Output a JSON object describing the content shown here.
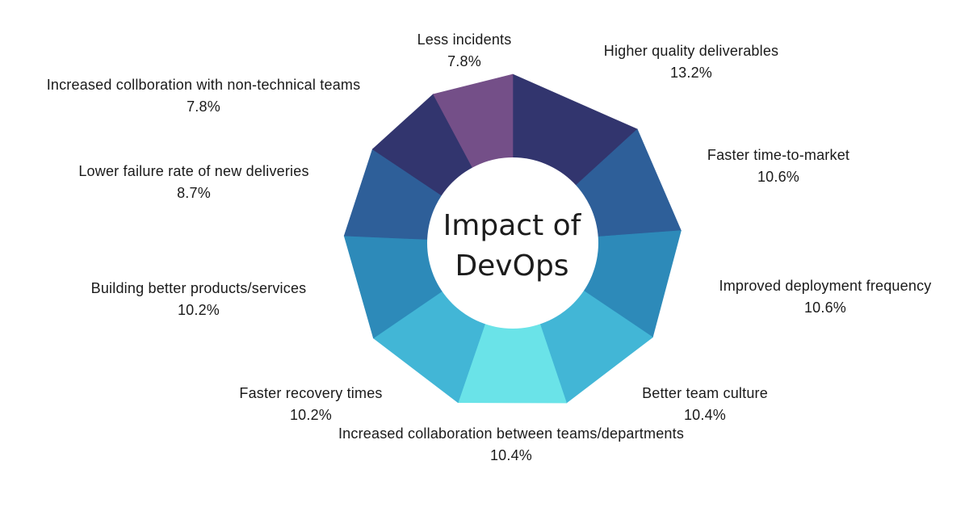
{
  "chart_data": {
    "type": "pie",
    "title_line1": "Impact of",
    "title_line2": "DevOps",
    "slices": [
      {
        "label": "Higher quality deliverables",
        "value": 13.2,
        "pct_text": "13.2%",
        "color": "#32356e"
      },
      {
        "label": "Faster time-to-market",
        "value": 10.6,
        "pct_text": "10.6%",
        "color": "#2e5f99"
      },
      {
        "label": "Improved deployment frequency",
        "value": 10.6,
        "pct_text": "10.6%",
        "color": "#2d8ab9"
      },
      {
        "label": "Better team culture",
        "value": 10.4,
        "pct_text": "10.4%",
        "color": "#42b6d6"
      },
      {
        "label": "Increased collaboration between teams/departments",
        "value": 10.4,
        "pct_text": "10.4%",
        "color": "#6ae3e8"
      },
      {
        "label": "Faster recovery times",
        "value": 10.2,
        "pct_text": "10.2%",
        "color": "#42b6d6"
      },
      {
        "label": "Building better products/services",
        "value": 10.2,
        "pct_text": "10.2%",
        "color": "#2d8ab9"
      },
      {
        "label": "Lower failure rate of new deliveries",
        "value": 8.7,
        "pct_text": "8.7%",
        "color": "#2e5f99"
      },
      {
        "label": "Increased collboration with non-technical teams",
        "value": 7.8,
        "pct_text": "7.8%",
        "color": "#32356e"
      },
      {
        "label": "Less incidents",
        "value": 7.8,
        "pct_text": "7.8%",
        "color": "#744f88"
      }
    ]
  }
}
